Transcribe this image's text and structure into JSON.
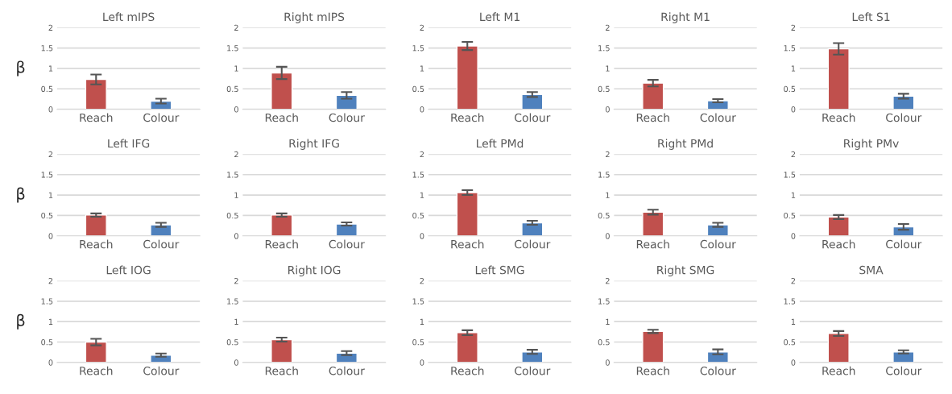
{
  "chart_data": [
    {
      "type": "bar",
      "title": "Left mIPS",
      "ylabel": "β",
      "categories": [
        "Reach",
        "Colour"
      ],
      "values": [
        0.73,
        0.2
      ],
      "errors": [
        0.12,
        0.06
      ],
      "colors": [
        "#c0504d",
        "#4f81bd"
      ],
      "ylim": [
        0,
        2
      ],
      "yticks": [
        0,
        0.5,
        1,
        1.5,
        2
      ],
      "grid": "y"
    },
    {
      "type": "bar",
      "title": "Right mIPS",
      "categories": [
        "Reach",
        "Colour"
      ],
      "values": [
        0.89,
        0.34
      ],
      "errors": [
        0.15,
        0.08
      ],
      "colors": [
        "#c0504d",
        "#4f81bd"
      ],
      "ylim": [
        0,
        2
      ],
      "yticks": [
        0,
        0.5,
        1,
        1.5,
        2
      ],
      "grid": "y"
    },
    {
      "type": "bar",
      "title": "Left M1",
      "categories": [
        "Reach",
        "Colour"
      ],
      "values": [
        1.55,
        0.36
      ],
      "errors": [
        0.1,
        0.06
      ],
      "colors": [
        "#c0504d",
        "#4f81bd"
      ],
      "ylim": [
        0,
        2
      ],
      "yticks": [
        0,
        0.5,
        1,
        1.5,
        2
      ],
      "grid": "y"
    },
    {
      "type": "bar",
      "title": "Right M1",
      "categories": [
        "Reach",
        "Colour"
      ],
      "values": [
        0.64,
        0.21
      ],
      "errors": [
        0.08,
        0.04
      ],
      "colors": [
        "#c0504d",
        "#4f81bd"
      ],
      "ylim": [
        0,
        2
      ],
      "yticks": [
        0,
        0.5,
        1,
        1.5,
        2
      ],
      "grid": "y"
    },
    {
      "type": "bar",
      "title": "Left S1",
      "categories": [
        "Reach",
        "Colour"
      ],
      "values": [
        1.48,
        0.32
      ],
      "errors": [
        0.14,
        0.06
      ],
      "colors": [
        "#c0504d",
        "#4f81bd"
      ],
      "ylim": [
        0,
        2
      ],
      "yticks": [
        0,
        0.5,
        1,
        1.5,
        2
      ],
      "grid": "y"
    },
    {
      "type": "bar",
      "title": "Left IFG",
      "ylabel": "β",
      "categories": [
        "Reach",
        "Colour"
      ],
      "values": [
        0.51,
        0.27
      ],
      "errors": [
        0.04,
        0.05
      ],
      "colors": [
        "#c0504d",
        "#4f81bd"
      ],
      "ylim": [
        0,
        2
      ],
      "yticks": [
        0,
        0.5,
        1,
        1.5,
        2
      ],
      "grid": "y"
    },
    {
      "type": "bar",
      "title": "Right IFG",
      "categories": [
        "Reach",
        "Colour"
      ],
      "values": [
        0.51,
        0.29
      ],
      "errors": [
        0.04,
        0.04
      ],
      "colors": [
        "#c0504d",
        "#4f81bd"
      ],
      "ylim": [
        0,
        2
      ],
      "yticks": [
        0,
        0.5,
        1,
        1.5,
        2
      ],
      "grid": "y"
    },
    {
      "type": "bar",
      "title": "Left PMd",
      "categories": [
        "Reach",
        "Colour"
      ],
      "values": [
        1.06,
        0.32
      ],
      "errors": [
        0.06,
        0.05
      ],
      "colors": [
        "#c0504d",
        "#4f81bd"
      ],
      "ylim": [
        0,
        2
      ],
      "yticks": [
        0,
        0.5,
        1,
        1.5,
        2
      ],
      "grid": "y"
    },
    {
      "type": "bar",
      "title": "Right PMd",
      "categories": [
        "Reach",
        "Colour"
      ],
      "values": [
        0.58,
        0.27
      ],
      "errors": [
        0.06,
        0.05
      ],
      "colors": [
        "#c0504d",
        "#4f81bd"
      ],
      "ylim": [
        0,
        2
      ],
      "yticks": [
        0,
        0.5,
        1,
        1.5,
        2
      ],
      "grid": "y"
    },
    {
      "type": "bar",
      "title": "Right PMv",
      "categories": [
        "Reach",
        "Colour"
      ],
      "values": [
        0.46,
        0.22
      ],
      "errors": [
        0.05,
        0.07
      ],
      "colors": [
        "#c0504d",
        "#4f81bd"
      ],
      "ylim": [
        0,
        2
      ],
      "yticks": [
        0,
        0.5,
        1,
        1.5,
        2
      ],
      "grid": "y"
    },
    {
      "type": "bar",
      "title": "Left IOG",
      "ylabel": "β",
      "categories": [
        "Reach",
        "Colour"
      ],
      "values": [
        0.5,
        0.18
      ],
      "errors": [
        0.08,
        0.04
      ],
      "colors": [
        "#c0504d",
        "#4f81bd"
      ],
      "ylim": [
        0,
        2
      ],
      "yticks": [
        0,
        0.5,
        1,
        1.5,
        2
      ],
      "grid": "y"
    },
    {
      "type": "bar",
      "title": "Right IOG",
      "categories": [
        "Reach",
        "Colour"
      ],
      "values": [
        0.56,
        0.23
      ],
      "errors": [
        0.05,
        0.05
      ],
      "colors": [
        "#c0504d",
        "#4f81bd"
      ],
      "ylim": [
        0,
        2
      ],
      "yticks": [
        0,
        0.5,
        1,
        1.5,
        2
      ],
      "grid": "y"
    },
    {
      "type": "bar",
      "title": "Left SMG",
      "categories": [
        "Reach",
        "Colour"
      ],
      "values": [
        0.73,
        0.26
      ],
      "errors": [
        0.06,
        0.05
      ],
      "colors": [
        "#c0504d",
        "#4f81bd"
      ],
      "ylim": [
        0,
        2
      ],
      "yticks": [
        0,
        0.5,
        1,
        1.5,
        2
      ],
      "grid": "y"
    },
    {
      "type": "bar",
      "title": "Right SMG",
      "categories": [
        "Reach",
        "Colour"
      ],
      "values": [
        0.76,
        0.26
      ],
      "errors": [
        0.04,
        0.06
      ],
      "colors": [
        "#c0504d",
        "#4f81bd"
      ],
      "ylim": [
        0,
        2
      ],
      "yticks": [
        0,
        0.5,
        1,
        1.5,
        2
      ],
      "grid": "y"
    },
    {
      "type": "bar",
      "title": "SMA",
      "categories": [
        "Reach",
        "Colour"
      ],
      "values": [
        0.71,
        0.26
      ],
      "errors": [
        0.06,
        0.04
      ],
      "colors": [
        "#c0504d",
        "#4f81bd"
      ],
      "ylim": [
        0,
        2
      ],
      "yticks": [
        0,
        0.5,
        1,
        1.5,
        2
      ],
      "grid": "y"
    }
  ]
}
